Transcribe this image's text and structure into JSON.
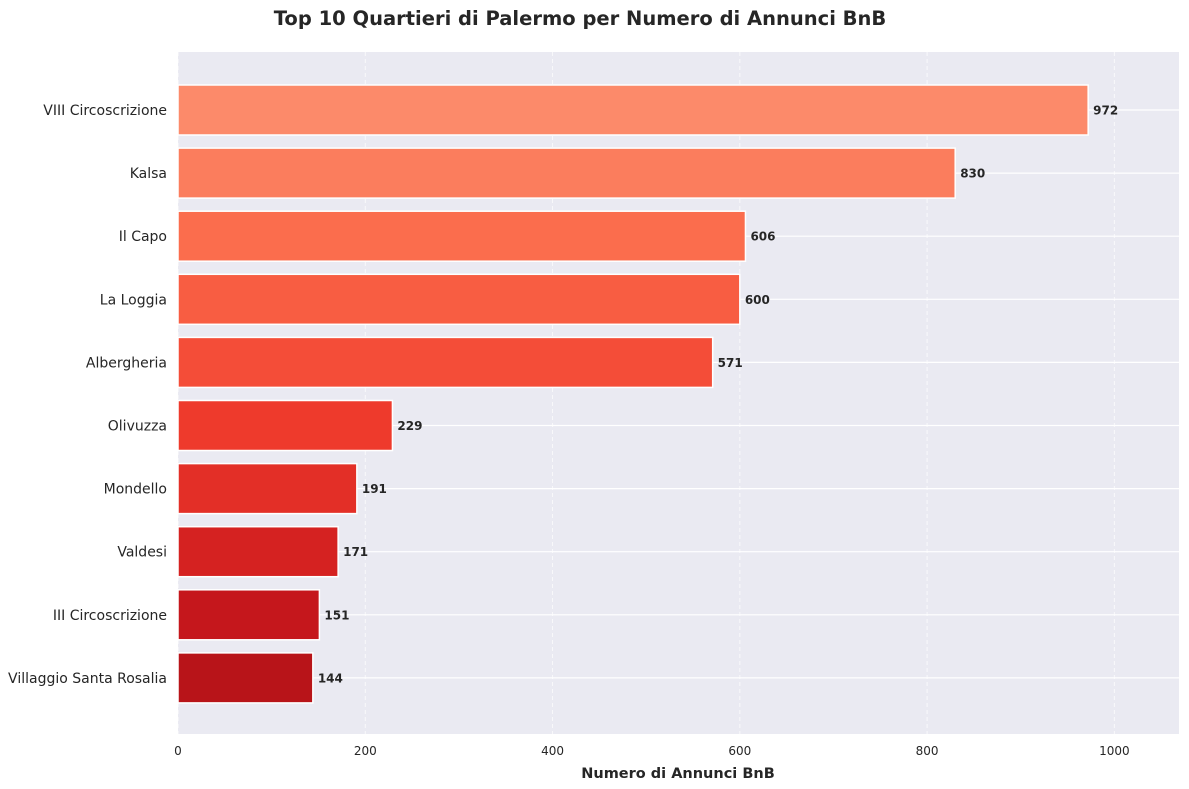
{
  "chart_data": {
    "type": "bar",
    "orientation": "horizontal",
    "title": "Top 10 Quartieri di Palermo per Numero di Annunci BnB",
    "xlabel": "Numero di Annunci BnB",
    "ylabel": "",
    "categories": [
      "VIII Circoscrizione",
      "Kalsa",
      "Il Capo",
      "La Loggia",
      "Albergheria",
      "Olivuzza",
      "Mondello",
      "Valdesi",
      "III Circoscrizione",
      "Villaggio Santa Rosalia"
    ],
    "values": [
      972,
      830,
      606,
      600,
      571,
      229,
      191,
      171,
      151,
      144
    ],
    "value_labels": [
      "972",
      "830",
      "606",
      "600",
      "571",
      "229",
      "191",
      "171",
      "151",
      "144"
    ],
    "colors": [
      "#fc8a6a",
      "#fb7d5d",
      "#fb6d4d",
      "#f85d42",
      "#f44d38",
      "#ee3a2c",
      "#e32f27",
      "#d52221",
      "#c5171c",
      "#b81419"
    ],
    "xlim": [
      0,
      1069
    ],
    "xticks": [
      0,
      200,
      400,
      600,
      800,
      1000
    ],
    "xtick_labels": [
      "0",
      "200",
      "400",
      "600",
      "800",
      "1000"
    ],
    "grid": true,
    "background": "#eaeaf2"
  }
}
